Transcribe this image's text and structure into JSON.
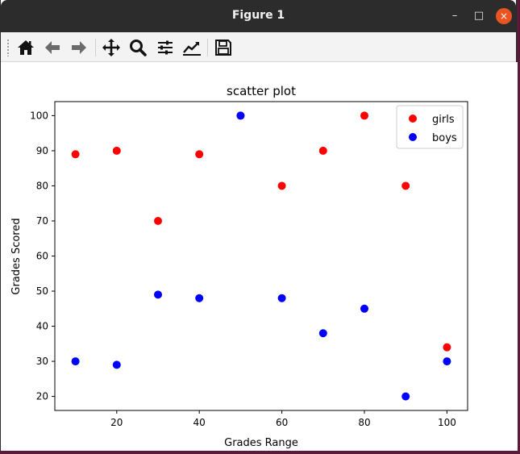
{
  "window": {
    "title": "Figure 1",
    "buttons": {
      "minimize": "–",
      "maximize": "□",
      "close": "×"
    }
  },
  "toolbar": {
    "items": [
      {
        "icon": "home-icon"
      },
      {
        "icon": "back-arrow-icon"
      },
      {
        "icon": "forward-arrow-icon"
      },
      {
        "icon": "pan-move-icon"
      },
      {
        "icon": "zoom-magnifier-icon"
      },
      {
        "icon": "configure-subplots-icon"
      },
      {
        "icon": "edit-axis-icon"
      },
      {
        "icon": "save-disk-icon"
      }
    ]
  },
  "chart_data": {
    "type": "scatter",
    "title": "scatter plot",
    "xlabel": "Grades Range",
    "ylabel": "Grades Scored",
    "xlim": [
      5,
      105
    ],
    "ylim": [
      16,
      104
    ],
    "xticks": [
      20,
      40,
      60,
      80,
      100
    ],
    "yticks": [
      20,
      30,
      40,
      50,
      60,
      70,
      80,
      90,
      100
    ],
    "grid": false,
    "legend_position": "top-right",
    "series": [
      {
        "name": "girls",
        "color": "#ff0000",
        "x": [
          10,
          20,
          30,
          40,
          50,
          60,
          70,
          80,
          90,
          100
        ],
        "y": [
          89,
          90,
          70,
          89,
          100,
          80,
          90,
          100,
          80,
          34
        ]
      },
      {
        "name": "boys",
        "color": "#0000ff",
        "x": [
          10,
          20,
          30,
          40,
          50,
          60,
          70,
          80,
          90,
          100
        ],
        "y": [
          30,
          29,
          49,
          48,
          100,
          48,
          38,
          45,
          20,
          30
        ]
      }
    ]
  }
}
